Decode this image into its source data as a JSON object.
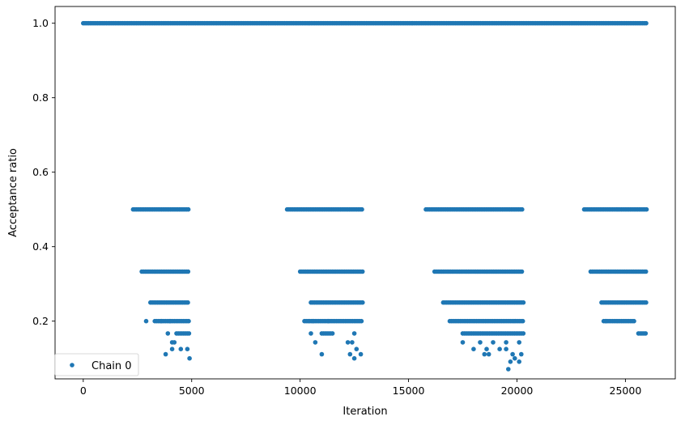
{
  "chart_data": {
    "type": "scatter",
    "xlabel": "Iteration",
    "ylabel": "Acceptance ratio",
    "xlim": [
      -1300,
      27300
    ],
    "ylim": [
      0.045,
      1.045
    ],
    "xticks": [
      0,
      5000,
      10000,
      15000,
      20000,
      25000
    ],
    "xtick_labels": [
      "0",
      "5000",
      "10000",
      "15000",
      "20000",
      "25000"
    ],
    "yticks": [
      0.2,
      0.4,
      0.6,
      0.8,
      1.0
    ],
    "ytick_labels": [
      "0.2",
      "0.4",
      "0.6",
      "0.8",
      "1.0"
    ],
    "grid": false,
    "legend_position": "lower-left",
    "marker_color": "#1f77b4",
    "series": [
      {
        "name": "Chain 0",
        "bands": [
          {
            "y": 1.0,
            "segments": [
              [
                0,
                26000
              ]
            ]
          },
          {
            "y": 0.5,
            "segments": [
              [
                2300,
                4900
              ],
              [
                9400,
                12900
              ],
              [
                15800,
                20300
              ],
              [
                23100,
                26000
              ]
            ]
          },
          {
            "y": 0.333,
            "segments": [
              [
                2700,
                4900
              ],
              [
                10000,
                12900
              ],
              [
                16200,
                20300
              ],
              [
                23400,
                26000
              ]
            ]
          },
          {
            "y": 0.25,
            "segments": [
              [
                3100,
                4900
              ],
              [
                10500,
                12900
              ],
              [
                16600,
                20300
              ],
              [
                23900,
                26000
              ]
            ]
          },
          {
            "y": 0.2,
            "segments": [
              [
                3300,
                4900
              ],
              [
                10200,
                12900
              ],
              [
                16900,
                20300
              ],
              [
                24000,
                25400
              ]
            ]
          },
          {
            "y": 0.167,
            "segments": [
              [
                4300,
                4900
              ],
              [
                11000,
                11500
              ],
              [
                17500,
                20300
              ],
              [
                25600,
                26000
              ]
            ]
          }
        ],
        "points": [
          [
            2900,
            0.2
          ],
          [
            3600,
            0.2
          ],
          [
            4000,
            0.2
          ],
          [
            3900,
            0.167
          ],
          [
            10600,
            0.2
          ],
          [
            11300,
            0.2
          ],
          [
            10500,
            0.167
          ],
          [
            12500,
            0.167
          ],
          [
            24100,
            0.2
          ],
          [
            4100,
            0.143
          ],
          [
            4200,
            0.143
          ],
          [
            10700,
            0.143
          ],
          [
            12200,
            0.143
          ],
          [
            12400,
            0.143
          ],
          [
            17500,
            0.143
          ],
          [
            18300,
            0.143
          ],
          [
            18900,
            0.143
          ],
          [
            19500,
            0.143
          ],
          [
            20100,
            0.143
          ],
          [
            3800,
            0.111
          ],
          [
            4100,
            0.125
          ],
          [
            4500,
            0.125
          ],
          [
            4800,
            0.125
          ],
          [
            11000,
            0.111
          ],
          [
            12300,
            0.111
          ],
          [
            12800,
            0.111
          ],
          [
            12600,
            0.125
          ],
          [
            18000,
            0.125
          ],
          [
            18600,
            0.125
          ],
          [
            19200,
            0.125
          ],
          [
            19500,
            0.125
          ],
          [
            18500,
            0.111
          ],
          [
            18700,
            0.111
          ],
          [
            19800,
            0.111
          ],
          [
            20200,
            0.111
          ],
          [
            4900,
            0.1
          ],
          [
            12500,
            0.1
          ],
          [
            19900,
            0.1
          ],
          [
            19700,
            0.091
          ],
          [
            20100,
            0.091
          ],
          [
            19600,
            0.071
          ]
        ]
      }
    ]
  }
}
